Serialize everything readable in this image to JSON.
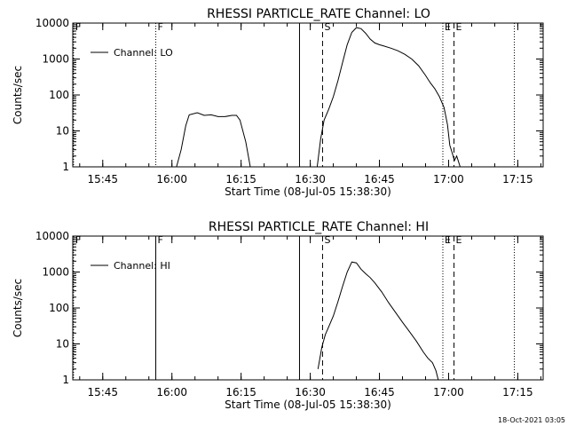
{
  "footer": {
    "date": "18-Oct-2021 03:05"
  },
  "colors": {
    "background": "#ffffff",
    "foreground": "#000000"
  },
  "chart_data": [
    {
      "type": "line",
      "title": "RHESSI PARTICLE_RATE Channel: LO",
      "xlabel": "Start Time (08-Jul-05 15:38:30)",
      "ylabel": "Counts/sec",
      "y_scale": "log",
      "xlim": [
        "15:38:30",
        "17:20:30"
      ],
      "ylim": [
        1,
        10000
      ],
      "x_ticks": [
        "15:45",
        "16:00",
        "16:15",
        "16:30",
        "16:45",
        "17:00",
        "17:15"
      ],
      "y_ticks": [
        "1",
        "10",
        "100",
        "1000",
        "10000"
      ],
      "legend": {
        "position": "top-left",
        "entries": [
          "Channel: LO"
        ]
      },
      "markers": [
        {
          "label": "F",
          "time": "15:38:40",
          "style": "dotted"
        },
        {
          "label": "F",
          "time": "15:56:30",
          "style": "dotted"
        },
        {
          "label": "",
          "time": "16:27:40",
          "style": "solid"
        },
        {
          "label": "S",
          "time": "16:32:40",
          "style": "dashed"
        },
        {
          "label": "E",
          "time": "16:58:45",
          "style": "dotted"
        },
        {
          "label": "E",
          "time": "17:01:10",
          "style": "dashed"
        },
        {
          "label": "",
          "time": "17:14:15",
          "style": "dotted"
        }
      ],
      "series": [
        {
          "name": "Channel: LO",
          "segments": [
            {
              "x": [
                "16:01:00",
                "16:02:00",
                "16:03:00",
                "16:03:45",
                "16:05:30",
                "16:07:00",
                "16:08:30",
                "16:10:00",
                "16:11:30",
                "16:13:00",
                "16:14:00",
                "16:14:45",
                "16:16:00",
                "16:17:00"
              ],
              "y": [
                1,
                3,
                14,
                28,
                32,
                27,
                28,
                25,
                25,
                27,
                27,
                20,
                5,
                1
              ]
            },
            {
              "x": [
                "16:31:30",
                "16:32:15",
                "16:33:00",
                "16:34:00",
                "16:35:00",
                "16:36:00",
                "16:37:00",
                "16:38:00",
                "16:39:00",
                "16:40:00",
                "16:41:00",
                "16:42:00",
                "16:43:00",
                "16:44:00",
                "16:45:00",
                "16:46:00",
                "16:47:30",
                "16:49:00",
                "16:50:30",
                "16:52:00",
                "16:53:30",
                "16:55:00",
                "16:56:00",
                "16:57:00",
                "16:58:00",
                "16:59:00",
                "16:59:45",
                "17:00:15",
                "17:00:45",
                "17:01:15",
                "17:01:45",
                "17:02:30"
              ],
              "y": [
                1,
                6,
                20,
                40,
                90,
                250,
                800,
                2500,
                5500,
                7500,
                7000,
                5200,
                3600,
                2800,
                2500,
                2300,
                2000,
                1700,
                1350,
                1000,
                650,
                350,
                220,
                150,
                90,
                45,
                15,
                4,
                2.5,
                1.5,
                2,
                1
              ]
            }
          ]
        }
      ]
    },
    {
      "type": "line",
      "title": "RHESSI PARTICLE_RATE Channel: HI",
      "xlabel": "Start Time (08-Jul-05 15:38:30)",
      "ylabel": "Counts/sec",
      "y_scale": "log",
      "xlim": [
        "15:38:30",
        "17:20:30"
      ],
      "ylim": [
        1,
        10000
      ],
      "x_ticks": [
        "15:45",
        "16:00",
        "16:15",
        "16:30",
        "16:45",
        "17:00",
        "17:15"
      ],
      "y_ticks": [
        "1",
        "10",
        "100",
        "1000",
        "10000"
      ],
      "legend": {
        "position": "top-left",
        "entries": [
          "Channel: HI"
        ]
      },
      "markers": [
        {
          "label": "F",
          "time": "15:38:40",
          "style": "dotted"
        },
        {
          "label": "F",
          "time": "15:56:30",
          "style": "solid"
        },
        {
          "label": "",
          "time": "16:27:40",
          "style": "solid"
        },
        {
          "label": "S",
          "time": "16:32:40",
          "style": "dashed"
        },
        {
          "label": "E",
          "time": "16:58:45",
          "style": "dotted"
        },
        {
          "label": "E",
          "time": "17:01:10",
          "style": "dashed"
        },
        {
          "label": "",
          "time": "17:14:15",
          "style": "dotted"
        }
      ],
      "series": [
        {
          "name": "Channel: HI",
          "segments": [
            {
              "x": [
                "16:31:40",
                "16:32:30",
                "16:33:15",
                "16:34:00",
                "16:35:00",
                "16:36:00",
                "16:37:00",
                "16:38:00",
                "16:39:00",
                "16:40:00",
                "16:41:00",
                "16:42:00",
                "16:43:00",
                "16:44:00",
                "16:45:30",
                "16:47:00",
                "16:48:30",
                "16:50:00",
                "16:51:30",
                "16:53:00",
                "16:54:30",
                "16:55:30",
                "16:56:30",
                "16:57:15",
                "16:57:45"
              ],
              "y": [
                2,
                8,
                18,
                30,
                60,
                150,
                400,
                1000,
                1900,
                1800,
                1200,
                900,
                700,
                500,
                280,
                140,
                75,
                40,
                22,
                12,
                6,
                4,
                3,
                1.8,
                1
              ]
            }
          ]
        }
      ]
    }
  ]
}
